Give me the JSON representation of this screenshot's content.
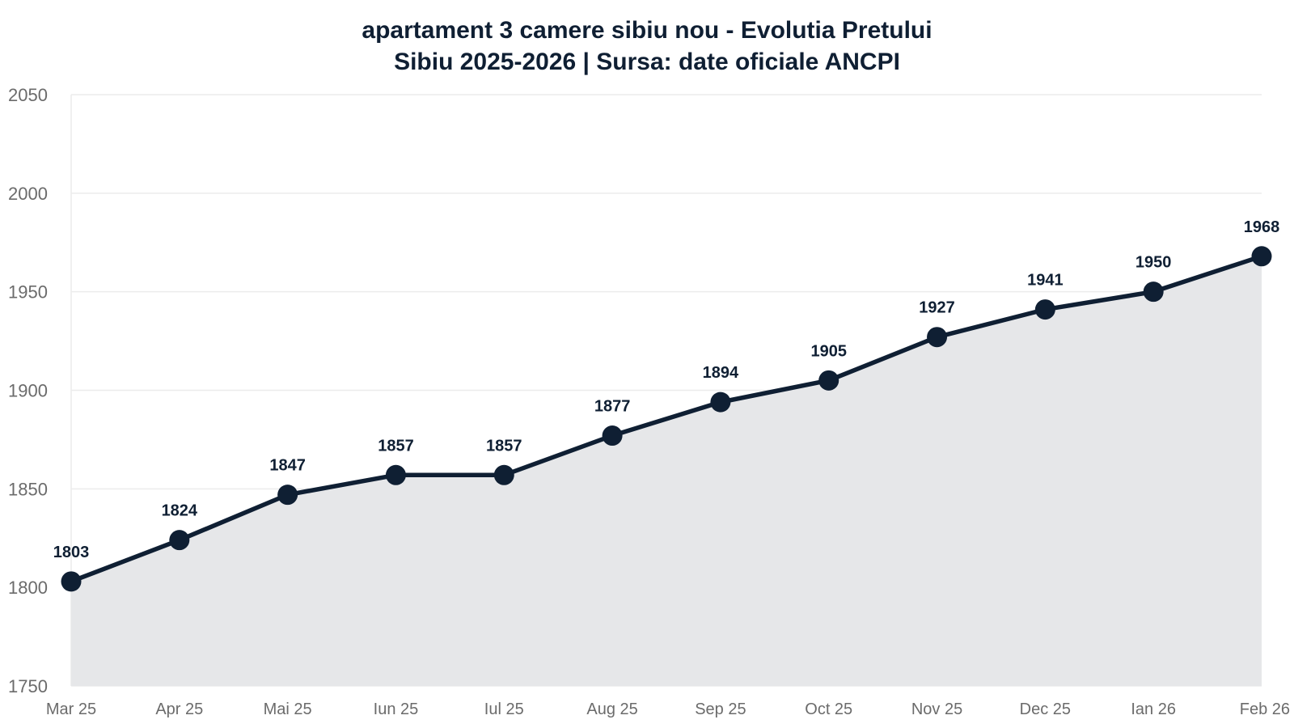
{
  "chart_data": {
    "type": "line",
    "title": "apartament 3 camere sibiu nou - Evolutia Pretului",
    "subtitle": "Sibiu 2025-2026 | Sursa: date oficiale ANCPI",
    "categories": [
      "Mar 25",
      "Apr 25",
      "Mai 25",
      "Iun 25",
      "Iul 25",
      "Aug 25",
      "Sep 25",
      "Oct 25",
      "Nov 25",
      "Dec 25",
      "Ian 26",
      "Feb 26"
    ],
    "values": [
      1803,
      1824,
      1847,
      1857,
      1857,
      1877,
      1894,
      1905,
      1927,
      1941,
      1950,
      1968
    ],
    "xlabel": "",
    "ylabel": "",
    "ylim": [
      1750,
      2050
    ],
    "yticks": [
      1750,
      1800,
      1850,
      1900,
      1950,
      2000,
      2050
    ],
    "grid": true,
    "area_fill": true,
    "data_labels": true,
    "colors": {
      "line": "#0f1f33",
      "area": "#e6e7e9",
      "grid": "#ececec",
      "tick_text": "#6b6b6b"
    }
  }
}
